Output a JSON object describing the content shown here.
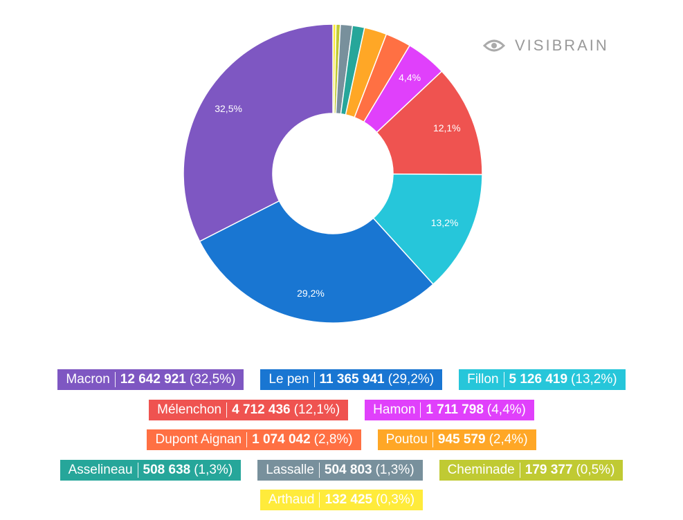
{
  "chart_data": {
    "type": "donut",
    "watermark": "VISIBRAIN",
    "categories": [
      "Macron",
      "Le pen",
      "Fillon",
      "Mélenchon",
      "Hamon",
      "Dupont Aignan",
      "Poutou",
      "Asselineau",
      "Lassalle",
      "Cheminade",
      "Arthaud"
    ],
    "values": [
      12642921,
      11365941,
      5126419,
      4712436,
      1711798,
      1074042,
      945579,
      508638,
      504803,
      179377,
      132425
    ],
    "value_labels": [
      "12 642 921",
      "11 365 941",
      "5 126 419",
      "4 712 436",
      "1 711 798",
      "1 074 042",
      "945 579",
      "508 638",
      "504 803",
      "179 377",
      "132 425"
    ],
    "share_labels": [
      "(32,5%)",
      "(29,2%)",
      "(13,2%)",
      "(12,1%)",
      "(4,4%)",
      "(2,8%)",
      "(2,4%)",
      "(1,3%)",
      "(1,3%)",
      "(0,5%)",
      "(0,3%)"
    ],
    "slice_labels": [
      "32,5%",
      "29,2%",
      "13,2%",
      "12,1%",
      "4,4%",
      null,
      null,
      null,
      null,
      null,
      null
    ],
    "colors": [
      "#7e57c2",
      "#1976d2",
      "#26c6da",
      "#ef5350",
      "#e040fb",
      "#ff7043",
      "#ffa726",
      "#26a69a",
      "#78909c",
      "#c0ca33",
      "#ffeb3b"
    ]
  }
}
